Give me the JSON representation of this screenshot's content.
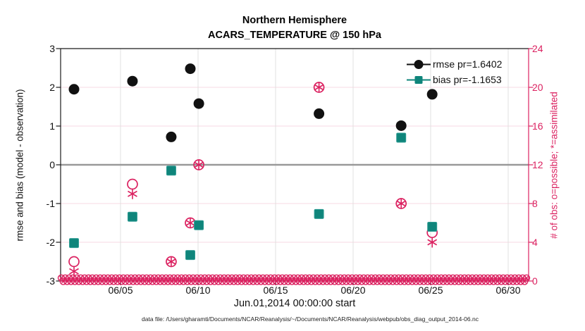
{
  "figure": {
    "title": "Northern Hemisphere",
    "subtitle": "ACARS_TEMPERATURE @ 150 hPa",
    "xlabel": "Jun.01,2014 00:00:00 start",
    "ylabel_left": "rmse and bias (model - observation)",
    "ylabel_right": "# of obs: o=possible; *=assimilated",
    "caption": "data file: /Users/gharamti/Documents/NCAR/Reanalysis/~/Documents/NCAR/Reanalysis/webpub/obs_diag_output_2014-06.nc"
  },
  "legend": {
    "items": [
      {
        "label": "rmse pr=1.6402",
        "marker": "filled-circle-on-line",
        "color": "#111111"
      },
      {
        "label": "bias pr=-1.1653",
        "marker": "filled-square-on-line",
        "color": "#0f857b"
      }
    ]
  },
  "colors": {
    "obs_pink": "#db2160",
    "bias_teal": "#0f857b",
    "rmse_black": "#111111",
    "zero_line_gray": "#999999",
    "grid_vertical": "#e0e0e0",
    "grid_horizontal_pink": "#f7d9e3",
    "axis_black": "#1a1a1a"
  },
  "chart_data": {
    "type": "scatter",
    "title": "Northern Hemisphere",
    "subtitle": "ACARS_TEMPERATURE @ 150 hPa",
    "xlabel": "Jun.01,2014 00:00:00 start",
    "x_axis": {
      "unit": "day of June 2014 (decimal)",
      "range_days": [
        1.14,
        31.3
      ],
      "ticks": [
        {
          "day": 5,
          "label": "06/05"
        },
        {
          "day": 10,
          "label": "06/10"
        },
        {
          "day": 15,
          "label": "06/15"
        },
        {
          "day": 20,
          "label": "06/20"
        },
        {
          "day": 25,
          "label": "06/25"
        },
        {
          "day": 30,
          "label": "06/30"
        }
      ]
    },
    "y_left": {
      "label": "rmse and bias (model - observation)",
      "min": -3,
      "max": 3,
      "ticks": [
        3,
        2,
        1,
        0,
        -1,
        -2,
        -3
      ],
      "grid": true
    },
    "y_right": {
      "label": "# of obs: o=possible; *=assimilated",
      "min": 0,
      "max": 24,
      "ticks": [
        24,
        20,
        16,
        12,
        8,
        4,
        0
      ]
    },
    "zero_reference_line": {
      "value": 0,
      "axis": "left"
    },
    "legend_position": "top-right-inside",
    "points": {
      "days": [
        2.0,
        5.77,
        8.27,
        9.5,
        10.05,
        17.8,
        23.1,
        25.1
      ],
      "rmse": [
        1.95,
        2.16,
        0.72,
        2.48,
        1.58,
        1.32,
        1.01,
        1.82
      ],
      "bias": [
        -2.02,
        -1.34,
        -0.15,
        -2.33,
        -1.56,
        -1.27,
        0.7,
        -1.6
      ],
      "possible": [
        2,
        10,
        2,
        6,
        12,
        20,
        8,
        5
      ],
      "assimilated": [
        1,
        9,
        2,
        6,
        12,
        20,
        8,
        4
      ]
    },
    "series_meta": [
      {
        "name": "rmse pr=1.6402",
        "key": "rmse",
        "axis": "left",
        "marker": "filled-circle",
        "color": "#111111"
      },
      {
        "name": "bias pr=-1.1653",
        "key": "bias",
        "axis": "left",
        "marker": "filled-square",
        "color": "#0f857b"
      },
      {
        "name": "possible",
        "key": "possible",
        "axis": "right",
        "marker": "open-circle",
        "color": "#db2160"
      },
      {
        "name": "assimilated",
        "key": "assimilated",
        "axis": "right",
        "marker": "asterisk",
        "color": "#db2160"
      }
    ],
    "zero_obs_row": {
      "value": 0,
      "axis": "right",
      "start_day": 1.14,
      "end_day": 31.3,
      "interval_days": 0.25,
      "marker": "circle-with-asterisk"
    }
  }
}
